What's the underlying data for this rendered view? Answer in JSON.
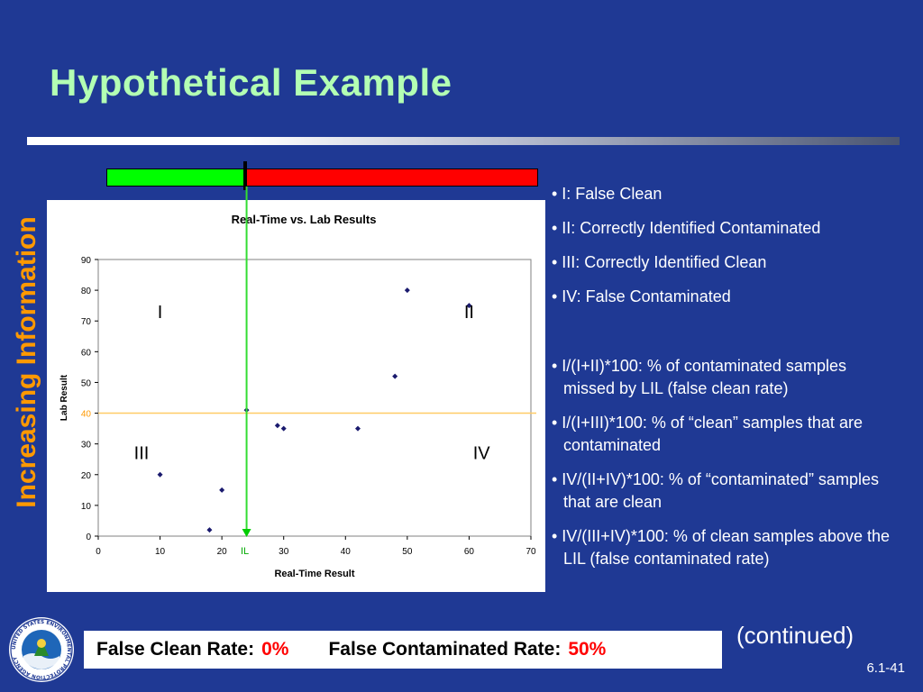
{
  "slide": {
    "title": "Hypothetical Example",
    "side_label": "Increasing Information",
    "continued": "(continued)",
    "slide_number": "6.1-41",
    "seal_text": "UNITED STATES ENVIRONMENTAL PROTECTION AGENCY"
  },
  "bullets": {
    "quadrants": [
      "• I: False Clean",
      "• II: Correctly Identified Contaminated",
      "• III: Correctly Identified Clean",
      "• IV: False Contaminated"
    ],
    "formulas": [
      "• I/(I+II)*100: % of contaminated samples missed by LIL (false clean rate)",
      "• I/(I+III)*100: % of “clean” samples that are contaminated",
      "• IV/(II+IV)*100: % of “contaminated” samples that are clean",
      "• IV/(III+IV)*100: % of clean samples above the LIL (false contaminated rate)"
    ]
  },
  "summary": {
    "false_clean_label": "False Clean Rate:",
    "false_clean_value": "0%",
    "false_contaminated_label": "False Contaminated Rate:",
    "false_contaminated_value": "50%"
  },
  "colors": {
    "background": "#1f3994",
    "title": "#b3ffb3",
    "side_label": "#ff9900",
    "bar_clean": "#00ff00",
    "bar_contaminated": "#ff0000",
    "point": "#1a1a6e",
    "threshold_line": "#ffcc66",
    "lil_line": "#00cc00",
    "rate": "#ff0000"
  },
  "chart_data": {
    "type": "scatter",
    "title": "Real-Time vs. Lab Results",
    "xlabel": "Real-Time Result",
    "ylabel": "Lab Result",
    "xlim": [
      0,
      70
    ],
    "ylim": [
      0,
      90
    ],
    "xticks": [
      0,
      10,
      20,
      30,
      40,
      50,
      60,
      70
    ],
    "yticks": [
      0,
      10,
      20,
      30,
      40,
      50,
      60,
      70,
      80,
      90
    ],
    "grid": false,
    "points": [
      {
        "x": 10,
        "y": 20
      },
      {
        "x": 18,
        "y": 2
      },
      {
        "x": 20,
        "y": 15
      },
      {
        "x": 24,
        "y": 41
      },
      {
        "x": 29,
        "y": 36
      },
      {
        "x": 30,
        "y": 35
      },
      {
        "x": 42,
        "y": 35
      },
      {
        "x": 48,
        "y": 52
      },
      {
        "x": 50,
        "y": 80
      },
      {
        "x": 60,
        "y": 75
      }
    ],
    "threshold_y": 40,
    "threshold_label": "40",
    "lil_x": 24,
    "lil_label": "IL",
    "quadrant_labels": [
      {
        "label": "I",
        "x": 10,
        "y": 71
      },
      {
        "label": "II",
        "x": 60,
        "y": 71
      },
      {
        "label": "III",
        "x": 7,
        "y": 25
      },
      {
        "label": "IV",
        "x": 62,
        "y": 25
      }
    ]
  }
}
